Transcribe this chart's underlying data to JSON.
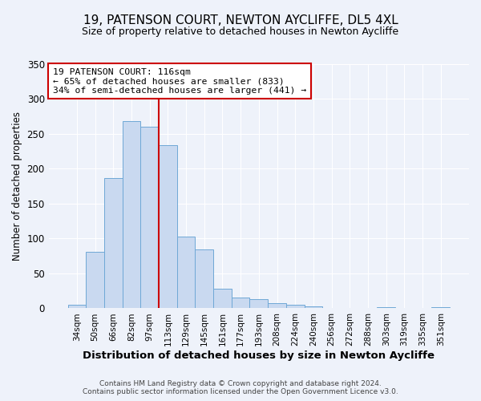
{
  "title": "19, PATENSON COURT, NEWTON AYCLIFFE, DL5 4XL",
  "subtitle": "Size of property relative to detached houses in Newton Aycliffe",
  "xlabel": "Distribution of detached houses by size in Newton Aycliffe",
  "ylabel": "Number of detached properties",
  "bar_labels": [
    "34sqm",
    "50sqm",
    "66sqm",
    "82sqm",
    "97sqm",
    "113sqm",
    "129sqm",
    "145sqm",
    "161sqm",
    "177sqm",
    "193sqm",
    "208sqm",
    "224sqm",
    "240sqm",
    "256sqm",
    "272sqm",
    "288sqm",
    "303sqm",
    "319sqm",
    "335sqm",
    "351sqm"
  ],
  "bar_heights": [
    5,
    81,
    187,
    268,
    260,
    234,
    103,
    85,
    28,
    15,
    13,
    7,
    5,
    3,
    1,
    0,
    0,
    2,
    1,
    1,
    2
  ],
  "bar_color": "#c9d9f0",
  "bar_edge_color": "#6fa8d6",
  "annotation_title": "19 PATENSON COURT: 116sqm",
  "annotation_line1": "← 65% of detached houses are smaller (833)",
  "annotation_line2": "34% of semi-detached houses are larger (441) →",
  "annotation_box_color": "#ffffff",
  "annotation_box_edge": "#cc0000",
  "vline_color": "#cc0000",
  "vline_x": 4.5,
  "ylim": [
    0,
    350
  ],
  "yticks": [
    0,
    50,
    100,
    150,
    200,
    250,
    300,
    350
  ],
  "footnote1": "Contains HM Land Registry data © Crown copyright and database right 2024.",
  "footnote2": "Contains public sector information licensed under the Open Government Licence v3.0.",
  "bg_color": "#eef2fa",
  "plot_bg_color": "#eef2fa"
}
